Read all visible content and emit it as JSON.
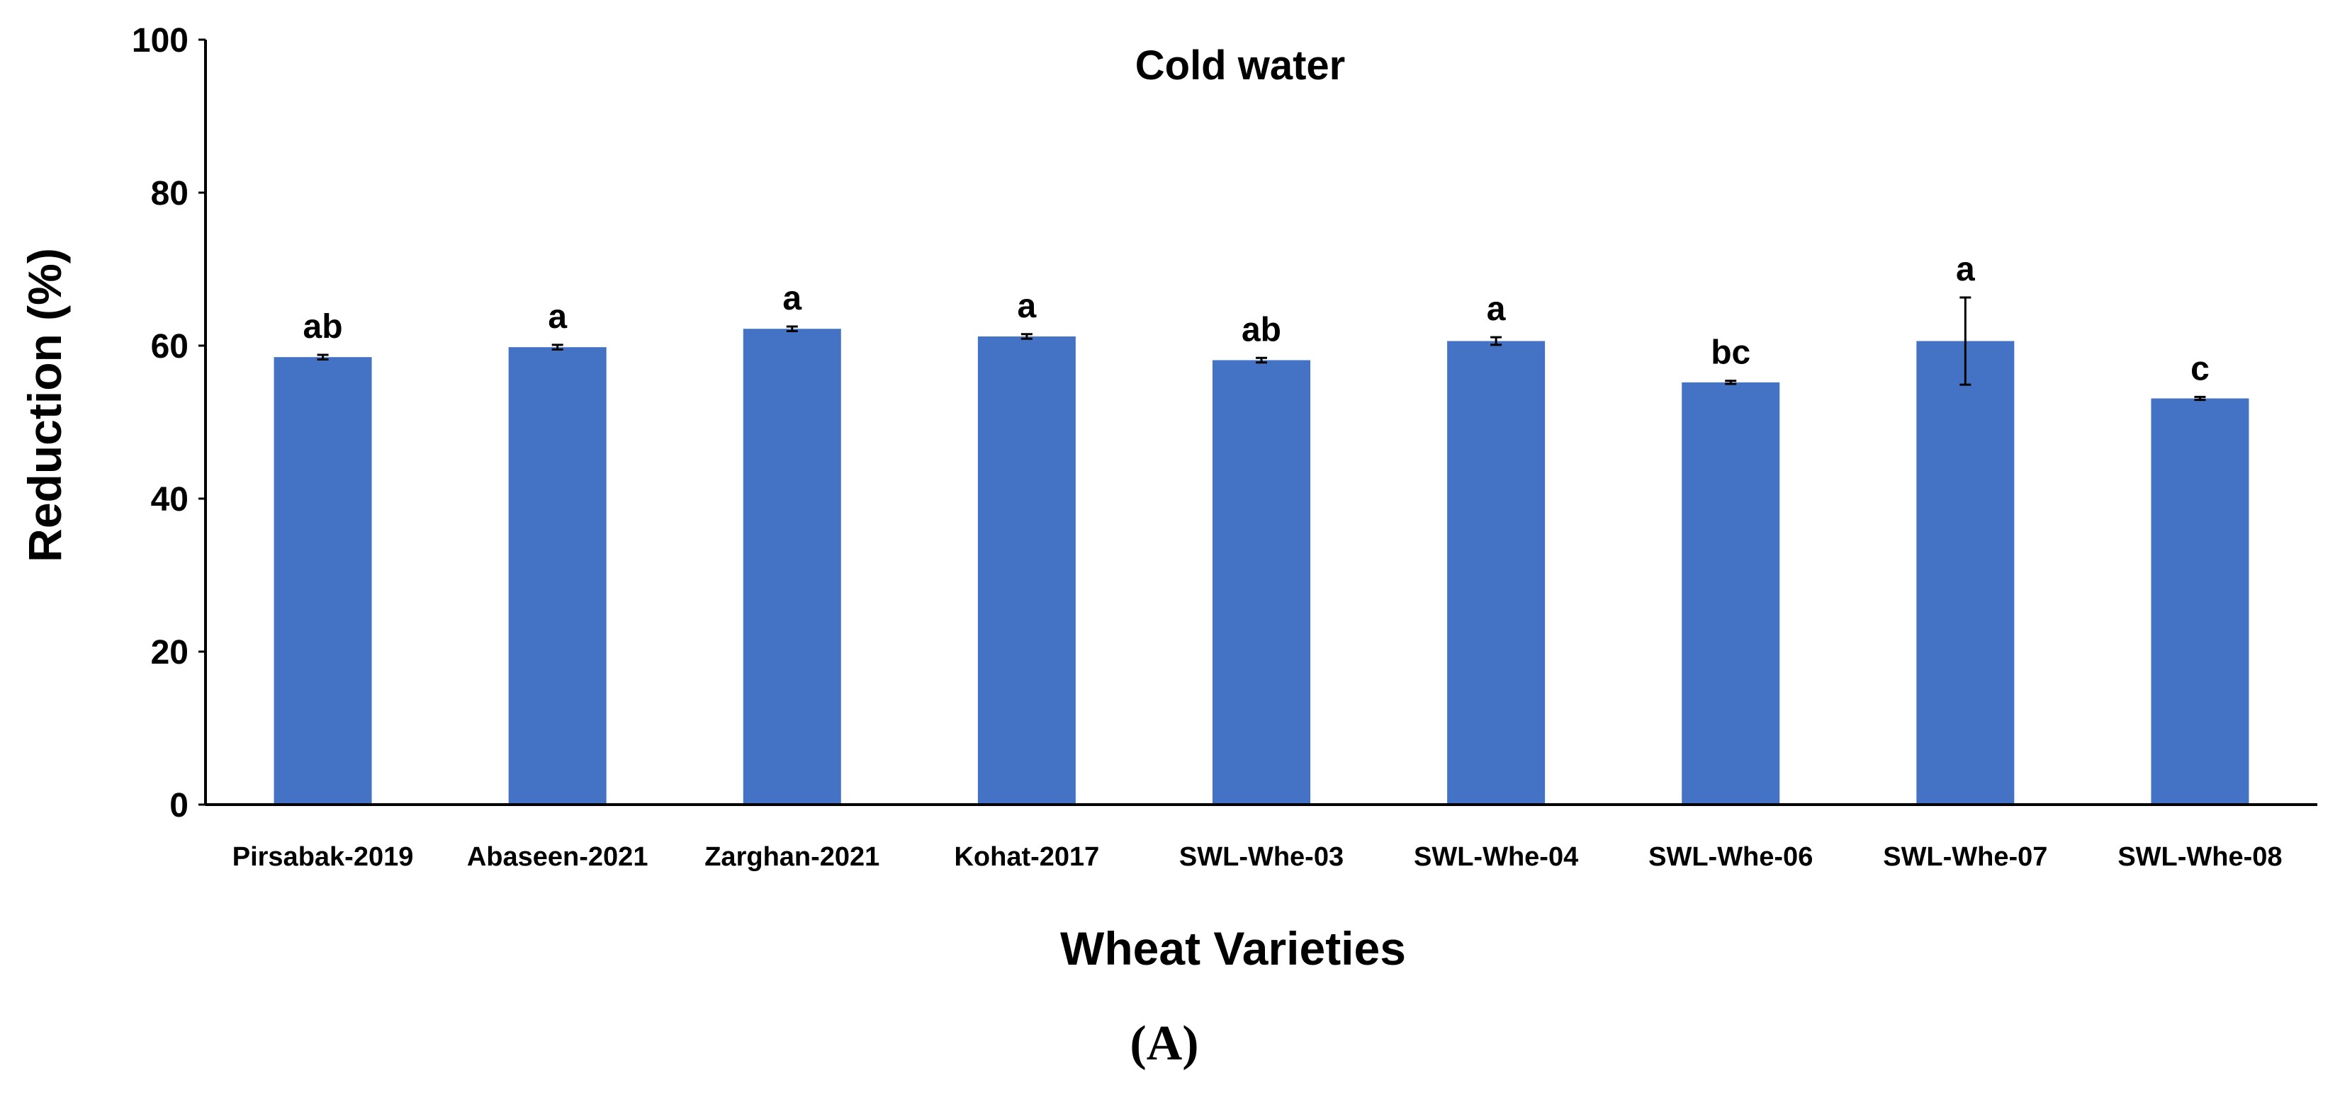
{
  "chart_data": {
    "type": "bar",
    "title": "Cold water",
    "xlabel": "Wheat Varieties",
    "ylabel": "Reduction (%)",
    "ylim": [
      0,
      100
    ],
    "yticks": [
      0,
      20,
      40,
      60,
      80,
      100
    ],
    "grid": false,
    "categories": [
      "Pirsabak-2019",
      "Abaseen-2021",
      "Zarghan-2021",
      "Kohat-2017",
      "SWL-Whe-03",
      "SWL-Whe-04",
      "SWL-Whe-06",
      "SWL-Whe-07",
      "SWL-Whe-08"
    ],
    "values": [
      58.5,
      59.8,
      62.2,
      61.2,
      58.1,
      60.6,
      55.2,
      60.6,
      53.1
    ],
    "errors": [
      0.3,
      0.3,
      0.3,
      0.3,
      0.3,
      0.5,
      0.2,
      5.7,
      0.2
    ],
    "significance_labels": [
      "ab",
      "a",
      "a",
      "a",
      "ab",
      "a",
      "bc",
      "a",
      "c"
    ],
    "bar_color": "#4472C4"
  },
  "panel_label": "(A)"
}
